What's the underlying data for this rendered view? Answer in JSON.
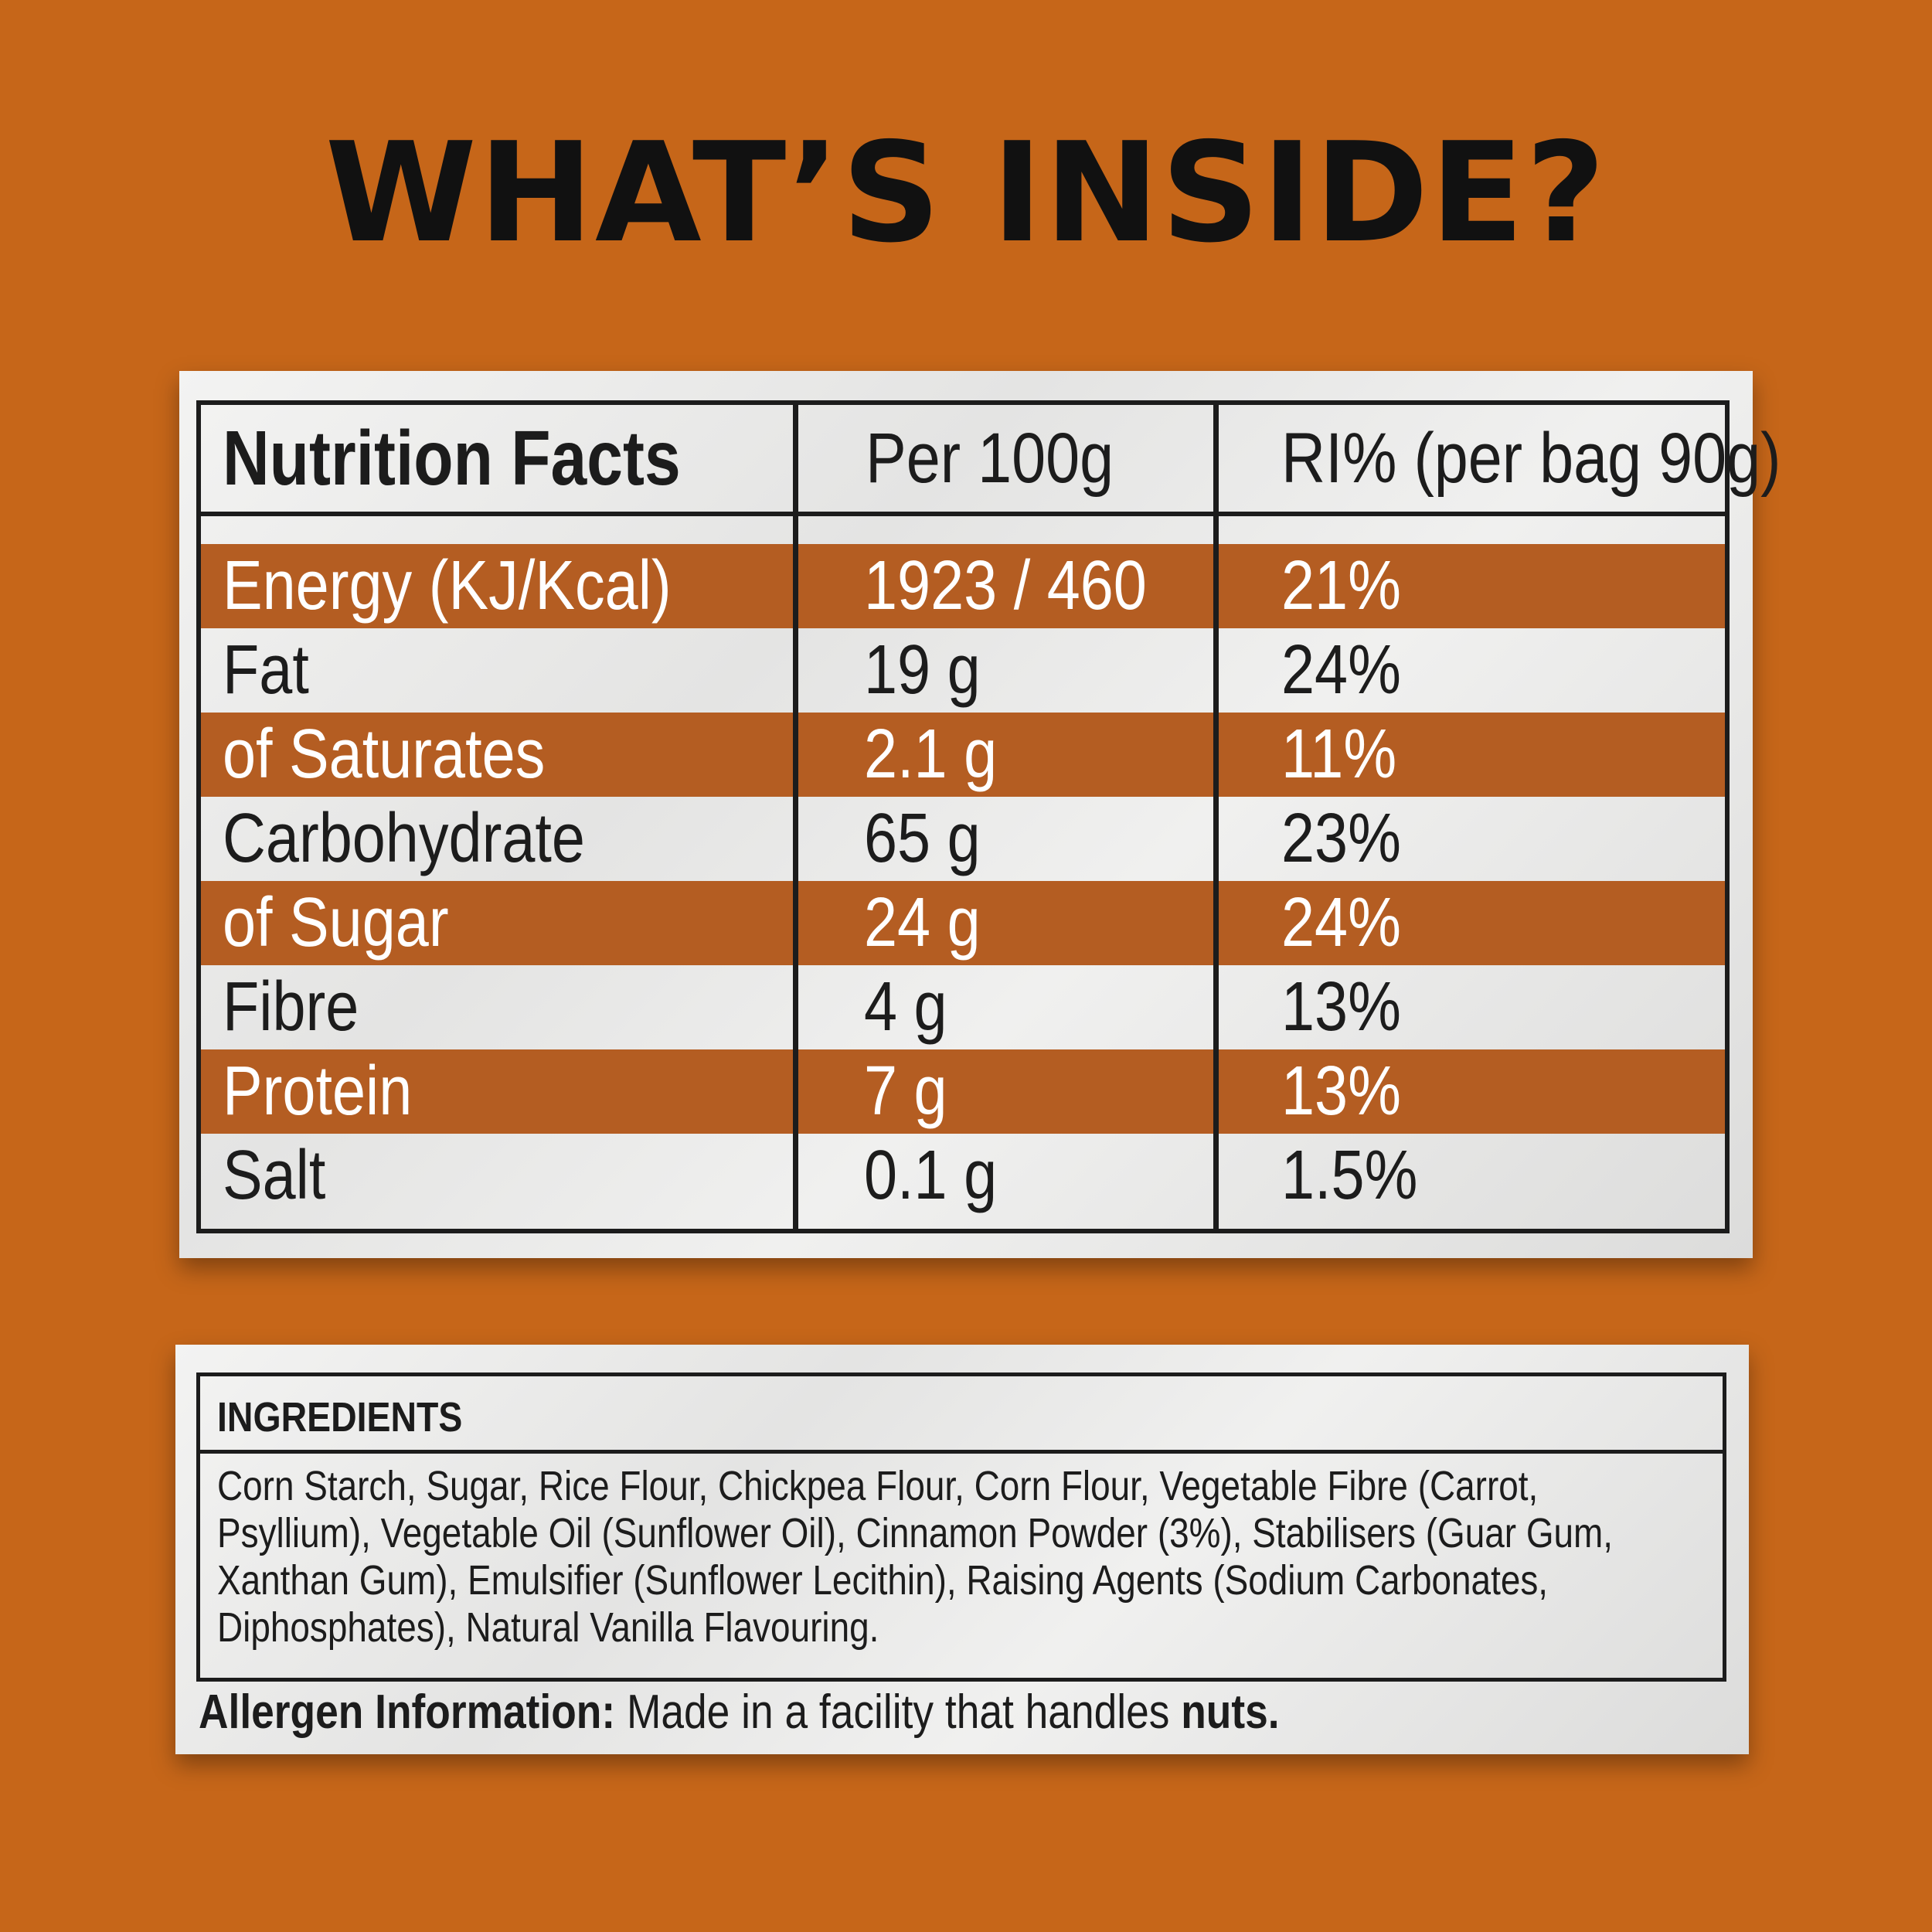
{
  "heading": "WHAT’S INSIDE?",
  "nutrition": {
    "headers": [
      "Nutrition Facts",
      "Per 100g",
      "RI% (per bag 90g)"
    ],
    "rows": [
      {
        "name": "Energy (KJ/Kcal)",
        "per100": "1923 / 460",
        "ri": "21%"
      },
      {
        "name": "Fat",
        "per100": "19 g",
        "ri": "24%"
      },
      {
        "name": "of Saturates",
        "per100": "2.1 g",
        "ri": "11%"
      },
      {
        "name": "Carbohydrate",
        "per100": "65 g",
        "ri": "23%"
      },
      {
        "name": "of Sugar",
        "per100": "24 g",
        "ri": "24%"
      },
      {
        "name": "Fibre",
        "per100": "4 g",
        "ri": "13%"
      },
      {
        "name": "Protein",
        "per100": "7 g",
        "ri": "13%"
      },
      {
        "name": "Salt",
        "per100": "0.1 g",
        "ri": "1.5%"
      }
    ]
  },
  "ingredients": {
    "title": "INGREDIENTS",
    "text": "Corn Starch, Sugar, Rice Flour, Chickpea Flour, Corn Flour, Vegetable Fibre (Carrot, Psyllium), Vegetable Oil (Sunflower Oil), Cinnamon Powder (3%), Stabilisers (Guar Gum, Xanthan Gum), Emulsifier (Sunflower Lecithin), Raising Agents (Sodium Carbonates, Diphosphates), Natural Vanilla Flavouring."
  },
  "allergen": {
    "label": "Allergen Information:",
    "text": " Made in a facility that handles ",
    "highlight": "nuts."
  },
  "colors": {
    "background": "#c66619",
    "band": "#b45d22",
    "card": "#eeeeed",
    "ink": "#1c1c1c"
  }
}
